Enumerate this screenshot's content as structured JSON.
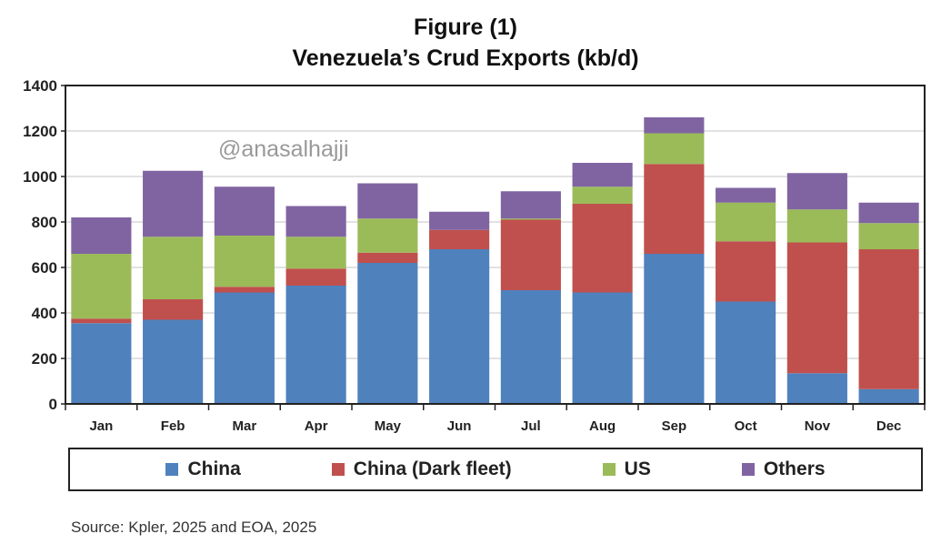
{
  "chart_data": {
    "type": "bar",
    "stacked": true,
    "title": "Figure (1)",
    "subtitle": "Venezuela’s Crud Exports (kb/d)",
    "xlabel": "",
    "ylabel": "",
    "ylim": [
      0,
      1400
    ],
    "yticks": [
      0,
      200,
      400,
      600,
      800,
      1000,
      1200,
      1400
    ],
    "grid": true,
    "legend_position": "bottom",
    "categories": [
      "Jan",
      "Feb",
      "Mar",
      "Apr",
      "May",
      "Jun",
      "Jul",
      "Aug",
      "Sep",
      "Oct",
      "Nov",
      "Dec"
    ],
    "series": [
      {
        "name": "China",
        "color": "#4F81BD",
        "values": [
          355,
          370,
          490,
          520,
          620,
          680,
          500,
          490,
          660,
          450,
          135,
          65
        ]
      },
      {
        "name": "China (Dark fleet)",
        "color": "#C0504D",
        "values": [
          20,
          90,
          25,
          75,
          45,
          85,
          310,
          390,
          395,
          265,
          575,
          615
        ]
      },
      {
        "name": "US",
        "color": "#9BBB59",
        "values": [
          285,
          275,
          225,
          140,
          150,
          0,
          5,
          75,
          135,
          170,
          145,
          115
        ]
      },
      {
        "name": "Others",
        "color": "#8064A2",
        "values": [
          160,
          290,
          215,
          135,
          155,
          80,
          120,
          105,
          70,
          65,
          160,
          90
        ]
      }
    ]
  },
  "watermark": "@anasalhajji",
  "source": "Source: Kpler, 2025 and EOA, 2025"
}
